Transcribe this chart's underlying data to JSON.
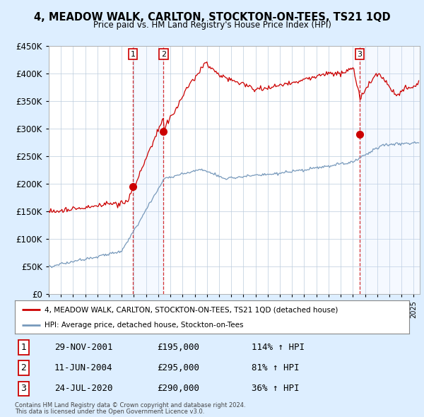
{
  "title": "4, MEADOW WALK, CARLTON, STOCKTON-ON-TEES, TS21 1QD",
  "subtitle": "Price paid vs. HM Land Registry's House Price Index (HPI)",
  "ylim": [
    0,
    450000
  ],
  "yticks": [
    0,
    50000,
    100000,
    150000,
    200000,
    250000,
    300000,
    350000,
    400000,
    450000
  ],
  "xlim_start": 1995.0,
  "xlim_end": 2025.5,
  "sale_dates": [
    2001.91,
    2004.44,
    2020.56
  ],
  "sale_prices": [
    195000,
    295000,
    290000
  ],
  "sale_labels": [
    "1",
    "2",
    "3"
  ],
  "sale_info": [
    [
      "1",
      "29-NOV-2001",
      "£195,000",
      "114% ↑ HPI"
    ],
    [
      "2",
      "11-JUN-2004",
      "£295,000",
      "81% ↑ HPI"
    ],
    [
      "3",
      "24-JUL-2020",
      "£290,000",
      "36% ↑ HPI"
    ]
  ],
  "legend_line1": "4, MEADOW WALK, CARLTON, STOCKTON-ON-TEES, TS21 1QD (detached house)",
  "legend_line2": "HPI: Average price, detached house, Stockton-on-Tees",
  "footer1": "Contains HM Land Registry data © Crown copyright and database right 2024.",
  "footer2": "This data is licensed under the Open Government Licence v3.0.",
  "red_color": "#cc0000",
  "blue_color": "#7799bb",
  "shade_color": "#cce0ff",
  "bg_color": "#ddeeff",
  "plot_bg": "#ffffff",
  "grid_color": "#bbccdd"
}
